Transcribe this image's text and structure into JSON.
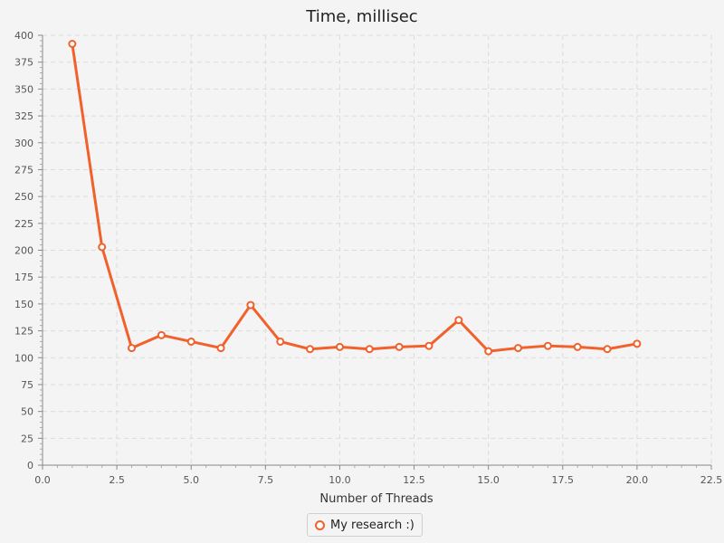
{
  "chart_data": {
    "type": "line",
    "title": "Time, millisec",
    "xlabel": "Number of Threads",
    "ylabel": "",
    "xlim": [
      0,
      22.5
    ],
    "ylim": [
      0,
      400
    ],
    "x_ticks": [
      "0.0",
      "2.5",
      "5.0",
      "7.5",
      "10.0",
      "12.5",
      "15.0",
      "17.5",
      "20.0",
      "22.5"
    ],
    "y_ticks": [
      "0",
      "25",
      "50",
      "75",
      "100",
      "125",
      "150",
      "175",
      "200",
      "225",
      "250",
      "275",
      "300",
      "325",
      "350",
      "375",
      "400"
    ],
    "grid": true,
    "legend_position": "bottom-center",
    "series": [
      {
        "name": "My research :)",
        "color": "#f0612c",
        "x": [
          1,
          2,
          3,
          4,
          5,
          6,
          7,
          8,
          9,
          10,
          11,
          12,
          13,
          14,
          15,
          16,
          17,
          18,
          19,
          20
        ],
        "y": [
          392,
          203,
          109,
          121,
          115,
          109,
          149,
          115,
          108,
          110,
          108,
          110,
          111,
          135,
          106,
          109,
          111,
          110,
          108,
          113
        ]
      }
    ]
  }
}
